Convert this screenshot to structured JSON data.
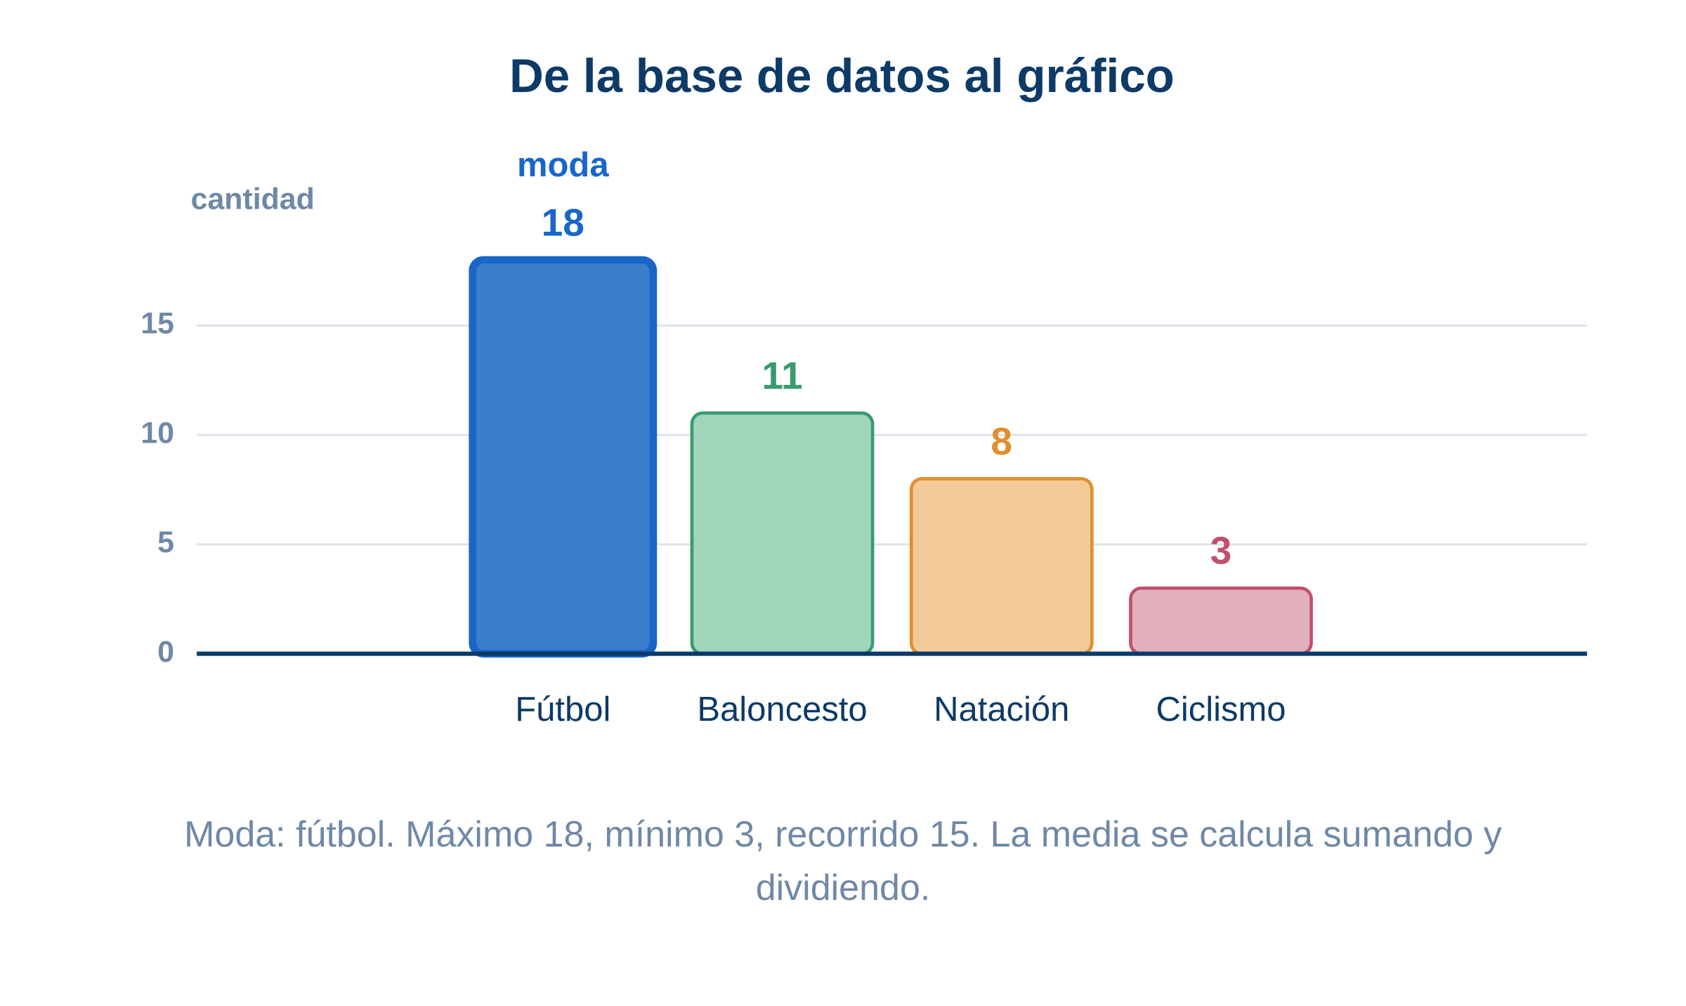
{
  "chart_data": {
    "type": "bar",
    "title": "De la base de datos al gráfico",
    "y_label": "cantidad",
    "categories": [
      "Fútbol",
      "Baloncesto",
      "Natación",
      "Ciclismo"
    ],
    "values": [
      18,
      11,
      8,
      3
    ],
    "colors": [
      "#1a66c8",
      "#3a9a6e",
      "#e08f2a",
      "#c0506c"
    ],
    "fill_colors": [
      "#3a7dcc",
      "#a0d5bb",
      "#f2ca98",
      "#e2b0bb"
    ],
    "annotation": "moda",
    "caption": "Moda: fútbol. Máximo 18, mínimo 3, recorrido 15. La media se calcula sumando y dividiendo.",
    "ylim": [
      0,
      20
    ],
    "yticks": [
      0,
      5,
      10,
      15
    ],
    "grid": true
  }
}
